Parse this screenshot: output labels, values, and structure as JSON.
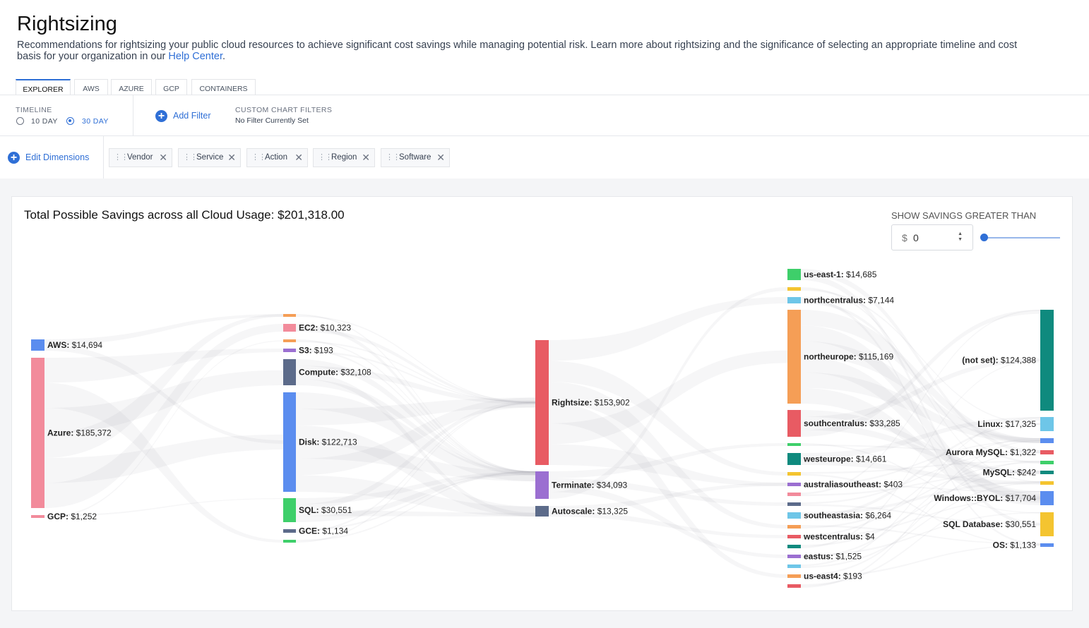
{
  "page": {
    "title": "Rightsizing",
    "description": "Recommendations for rightsizing your public cloud resources to achieve significant cost savings while managing potential risk. Learn more about rightsizing and the significance of selecting an appropriate timeline and cost basis for your organization in our ",
    "help_link": "Help Center",
    "description_end": "."
  },
  "tabs": [
    {
      "label": "EXPLORER",
      "active": true
    },
    {
      "label": "AWS",
      "active": false
    },
    {
      "label": "AZURE",
      "active": false
    },
    {
      "label": "GCP",
      "active": false
    },
    {
      "label": "CONTAINERS",
      "active": false
    }
  ],
  "timeline": {
    "label": "TIMELINE",
    "options": [
      "10 DAY",
      "30 DAY"
    ],
    "selected": "30 DAY"
  },
  "filters": {
    "add_label": "Add Filter",
    "custom_label": "CUSTOM CHART FILTERS",
    "custom_value": "No Filter Currently Set"
  },
  "dimensions": {
    "edit_label": "Edit Dimensions",
    "chips": [
      "Vendor",
      "Service",
      "Action",
      "Region",
      "Software"
    ]
  },
  "summary": {
    "label": "Total Possible Savings across all Cloud Usage:",
    "value": "$201,318.00"
  },
  "threshold": {
    "label": "SHOW SAVINGS GREATER THAN",
    "currency": "$",
    "value": "0",
    "slider_fraction": 0
  },
  "sankey": {
    "columns": [
      [
        {
          "name": "AWS",
          "value": "$14,694",
          "color": "#5b8def"
        },
        {
          "name": "Azure",
          "value": "$185,372",
          "color": "#f28b9b"
        },
        {
          "name": "GCP",
          "value": "$1,252",
          "color": "#f28b9b"
        }
      ],
      [
        {
          "name": "",
          "value": "",
          "color": "#f59e56"
        },
        {
          "name": "EC2",
          "value": "$10,323",
          "color": "#f28b9b"
        },
        {
          "name": "",
          "value": "",
          "color": "#f59e56"
        },
        {
          "name": "S3",
          "value": "$193",
          "color": "#9b6fd1"
        },
        {
          "name": "Compute",
          "value": "$32,108",
          "color": "#5c6b8a"
        },
        {
          "name": "Disk",
          "value": "$122,713",
          "color": "#5b8def"
        },
        {
          "name": "SQL",
          "value": "$30,551",
          "color": "#3ecf6a"
        },
        {
          "name": "GCE",
          "value": "$1,134",
          "color": "#5c6b8a"
        },
        {
          "name": "",
          "value": "",
          "color": "#3ecf6a"
        }
      ],
      [
        {
          "name": "Rightsize",
          "value": "$153,902",
          "color": "#e85b63"
        },
        {
          "name": "Terminate",
          "value": "$34,093",
          "color": "#9b6fd1"
        },
        {
          "name": "Autoscale",
          "value": "$13,325",
          "color": "#5c6b8a"
        }
      ],
      [
        {
          "name": "us-east-1",
          "value": "$14,685",
          "color": "#3ecf6a"
        },
        {
          "name": "",
          "value": "",
          "color": "#f4c430"
        },
        {
          "name": "northcentralus",
          "value": "$7,144",
          "color": "#6ec6e8"
        },
        {
          "name": "northeurope",
          "value": "$115,169",
          "color": "#f59e56"
        },
        {
          "name": "southcentralus",
          "value": "$33,285",
          "color": "#e85b63"
        },
        {
          "name": "",
          "value": "",
          "color": "#3ecf6a"
        },
        {
          "name": "westeurope",
          "value": "$14,661",
          "color": "#0f8a7e"
        },
        {
          "name": "",
          "value": "",
          "color": "#f4c430"
        },
        {
          "name": "australiasoutheast",
          "value": "$403",
          "color": "#9b6fd1"
        },
        {
          "name": "",
          "value": "",
          "color": "#f28b9b"
        },
        {
          "name": "",
          "value": "",
          "color": "#5c6b8a"
        },
        {
          "name": "southeastasia",
          "value": "$6,264",
          "color": "#6ec6e8"
        },
        {
          "name": "",
          "value": "",
          "color": "#f59e56"
        },
        {
          "name": "westcentralus",
          "value": "$4",
          "color": "#e85b63"
        },
        {
          "name": "",
          "value": "",
          "color": "#0f8a7e"
        },
        {
          "name": "eastus",
          "value": "$1,525",
          "color": "#9b6fd1"
        },
        {
          "name": "",
          "value": "",
          "color": "#6ec6e8"
        },
        {
          "name": "us-east4",
          "value": "$193",
          "color": "#f59e56"
        },
        {
          "name": "",
          "value": "",
          "color": "#e85b63"
        }
      ],
      [
        {
          "name": "(not set)",
          "value": "$124,388",
          "color": "#0f8a7e"
        },
        {
          "name": "Linux",
          "value": "$17,325",
          "color": "#6ec6e8"
        },
        {
          "name": "",
          "value": "",
          "color": "#5b8def"
        },
        {
          "name": "Aurora MySQL",
          "value": "$1,322",
          "color": "#e85b63"
        },
        {
          "name": "",
          "value": "",
          "color": "#3ecf6a"
        },
        {
          "name": "MySQL",
          "value": "$242",
          "color": "#0f8a7e"
        },
        {
          "name": "",
          "value": "",
          "color": "#f4c430"
        },
        {
          "name": "Windows::BYOL",
          "value": "$17,704",
          "color": "#5b8def"
        },
        {
          "name": "SQL Database",
          "value": "$30,551",
          "color": "#f4c430"
        },
        {
          "name": "OS",
          "value": "$1,133",
          "color": "#5b8def"
        }
      ]
    ]
  }
}
